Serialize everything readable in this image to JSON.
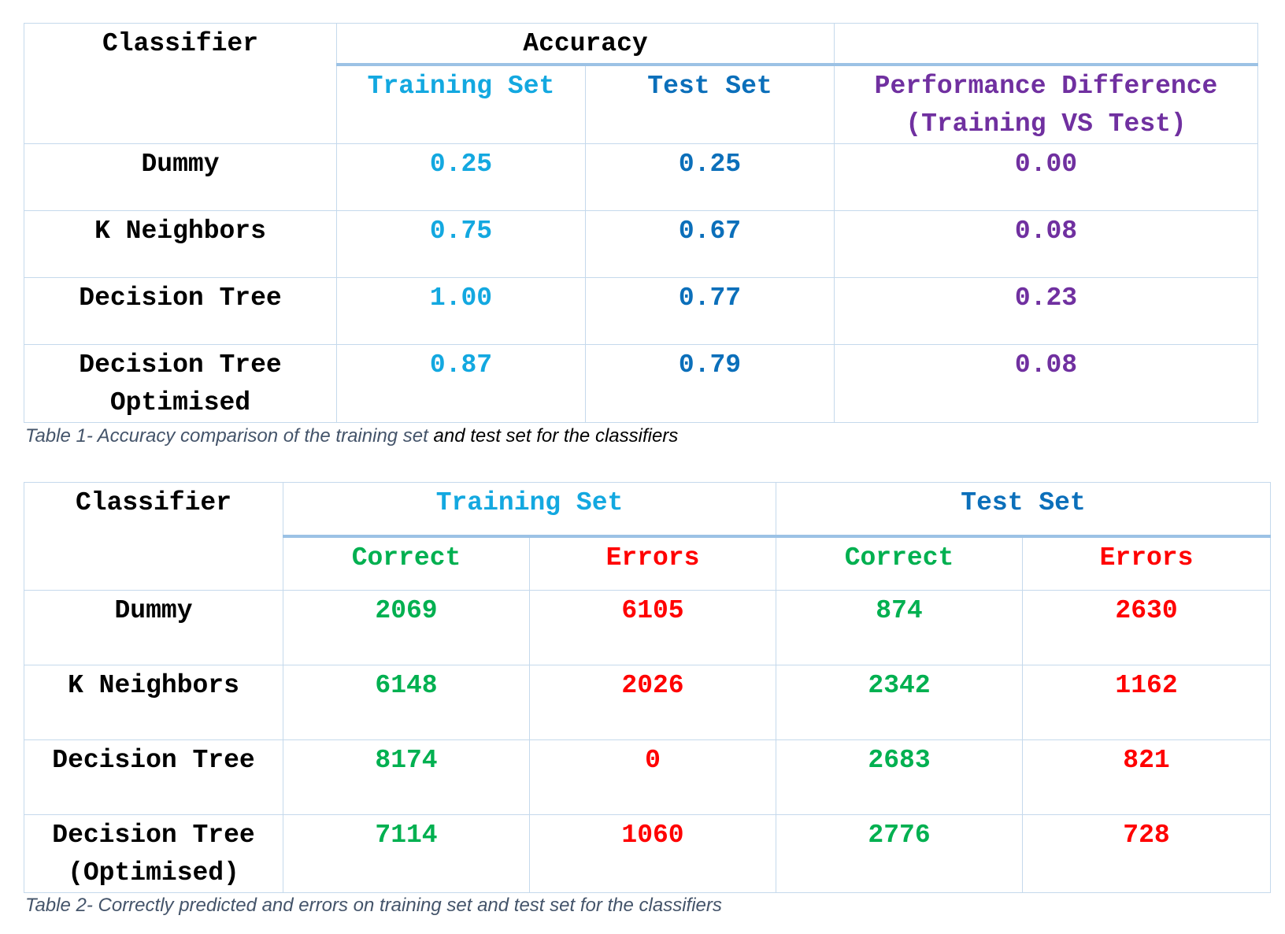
{
  "table1": {
    "headers": {
      "classifier": "Classifier",
      "accuracy": "Accuracy",
      "training_set": "Training Set",
      "test_set": "Test Set",
      "perf_diff_line1": "Performance Difference",
      "perf_diff_line2": "(Training VS Test)"
    },
    "rows": [
      {
        "classifier": [
          "Dummy"
        ],
        "training": "0.25",
        "test": "0.25",
        "difference": "0.00"
      },
      {
        "classifier": [
          "K Neighbors"
        ],
        "training": "0.75",
        "test": "0.67",
        "difference": "0.08"
      },
      {
        "classifier": [
          "Decision Tree"
        ],
        "training": "1.00",
        "test": "0.77",
        "difference": "0.23"
      },
      {
        "classifier": [
          "Decision Tree",
          "Optimised"
        ],
        "training": "0.87",
        "test": "0.79",
        "difference": "0.08"
      }
    ],
    "caption_part1": "Table 1- Accuracy comparison of the training set",
    "caption_part2": " and test set for the classifiers"
  },
  "table2": {
    "headers": {
      "classifier": "Classifier",
      "training_set": "Training Set",
      "test_set": "Test Set",
      "correct": "Correct",
      "errors": "Errors"
    },
    "rows": [
      {
        "classifier": [
          "Dummy"
        ],
        "train_correct": "2069",
        "train_errors": "6105",
        "test_correct": "874",
        "test_errors": "2630"
      },
      {
        "classifier": [
          "K Neighbors"
        ],
        "train_correct": "6148",
        "train_errors": "2026",
        "test_correct": "2342",
        "test_errors": "1162"
      },
      {
        "classifier": [
          "Decision Tree"
        ],
        "train_correct": "8174",
        "train_errors": "0",
        "test_correct": "2683",
        "test_errors": "821"
      },
      {
        "classifier": [
          "Decision Tree",
          "(Optimised)"
        ],
        "train_correct": "7114",
        "train_errors": "1060",
        "test_correct": "2776",
        "test_errors": "728"
      }
    ],
    "caption": "Table 2- Correctly predicted and errors on training set and test set for the classifiers"
  },
  "colors": {
    "training": "#13a8e0",
    "test": "#0b6fba",
    "difference": "#7030a0",
    "correct": "#00b050",
    "errors": "#ff0000",
    "border": "#c5d9ec",
    "header_rule": "#9cc2e5",
    "caption": "#44546a"
  }
}
